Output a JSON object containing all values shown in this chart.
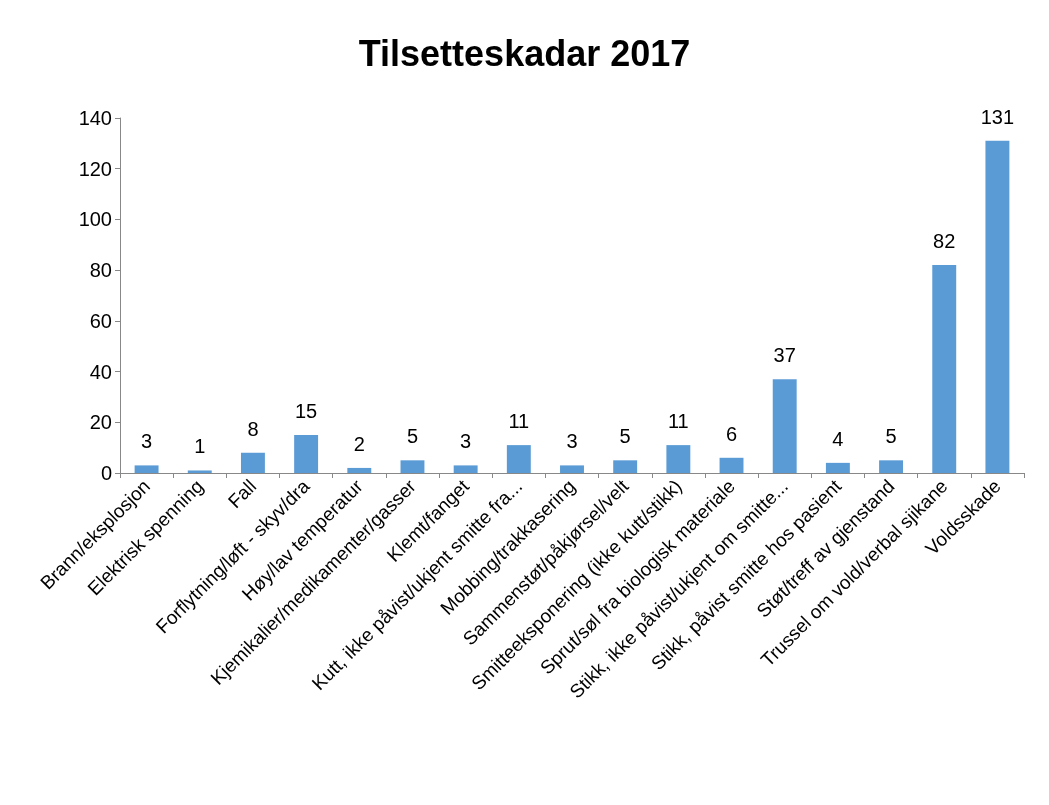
{
  "chart_data": {
    "type": "bar",
    "title": "Tilsetteskadar 2017",
    "categories": [
      "Brann/eksplosjon",
      "Elektrisk spenning",
      "Fall",
      "Forflytning/løft - skyv/dra",
      "Høy/lav temperatur",
      "Kjemikalier/medikamenter/gasser",
      "Klemt/fanget",
      "Kutt, ikke påvist/ukjent smitte fra...",
      "Mobbing/trakkasering",
      "Sammenstøt/påkjørsel/velt",
      "Smitteeksponering (ikke kutt/stikk)",
      "Sprut/søl fra biologisk materiale",
      "Stikk, ikke påvist/ukjent om smitte...",
      "Stikk, påvist smitte hos pasient",
      "Støt/treff av gjenstand",
      "Trussel om vold/verbal sjikane",
      "Voldsskade"
    ],
    "values": [
      3,
      1,
      8,
      15,
      2,
      5,
      3,
      11,
      3,
      5,
      11,
      6,
      37,
      4,
      5,
      82,
      131
    ],
    "color": "#5b9bd5",
    "ylim": [
      0,
      140
    ],
    "yticks": [
      0,
      20,
      40,
      60,
      80,
      100,
      120,
      140
    ],
    "grid": false,
    "data_labels": true
  }
}
